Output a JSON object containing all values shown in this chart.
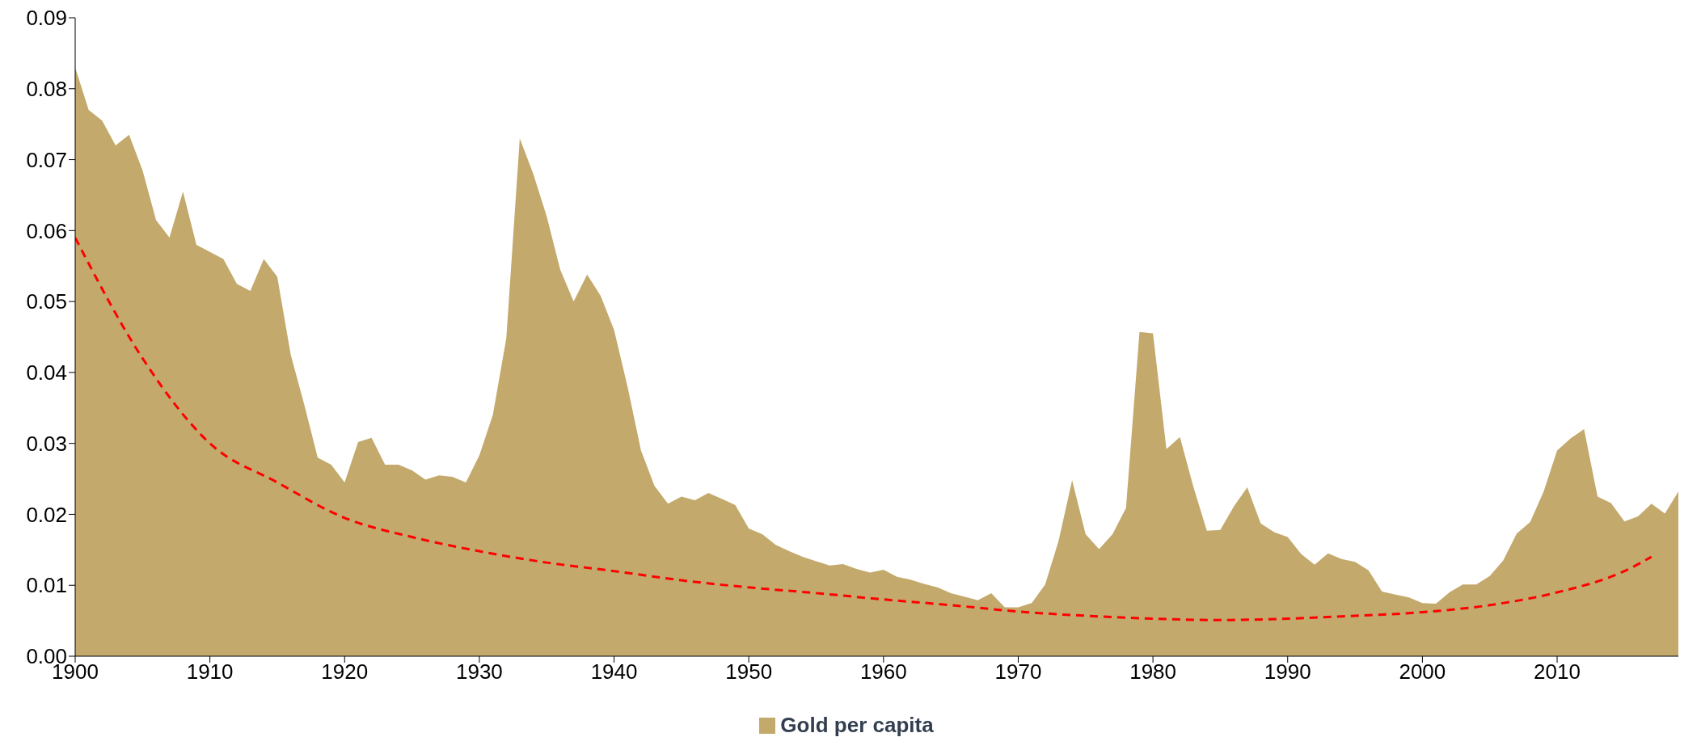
{
  "chart_data": {
    "type": "area",
    "x": [
      1900,
      1901,
      1902,
      1903,
      1904,
      1905,
      1906,
      1907,
      1908,
      1909,
      1910,
      1911,
      1912,
      1913,
      1914,
      1915,
      1916,
      1917,
      1918,
      1919,
      1920,
      1921,
      1922,
      1923,
      1924,
      1925,
      1926,
      1927,
      1928,
      1929,
      1930,
      1931,
      1932,
      1933,
      1934,
      1935,
      1936,
      1937,
      1938,
      1939,
      1940,
      1941,
      1942,
      1943,
      1944,
      1945,
      1946,
      1947,
      1948,
      1949,
      1950,
      1951,
      1952,
      1953,
      1954,
      1955,
      1956,
      1957,
      1958,
      1959,
      1960,
      1961,
      1962,
      1963,
      1964,
      1965,
      1966,
      1967,
      1968,
      1969,
      1970,
      1971,
      1972,
      1973,
      1974,
      1975,
      1976,
      1977,
      1978,
      1979,
      1980,
      1981,
      1982,
      1983,
      1984,
      1985,
      1986,
      1987,
      1988,
      1989,
      1990,
      1991,
      1992,
      1993,
      1994,
      1995,
      1996,
      1997,
      1998,
      1999,
      2000,
      2001,
      2002,
      2003,
      2004,
      2005,
      2006,
      2007,
      2008,
      2009,
      2010,
      2011,
      2012,
      2013,
      2014,
      2015,
      2016,
      2017,
      2018,
      2019
    ],
    "series": [
      {
        "name": "Gold per capita",
        "color": "#c3a96c",
        "values": [
          0.083,
          0.077,
          0.0755,
          0.072,
          0.0735,
          0.0685,
          0.0615,
          0.059,
          0.0655,
          0.058,
          0.057,
          0.056,
          0.0525,
          0.0515,
          0.056,
          0.0535,
          0.0425,
          0.0355,
          0.028,
          0.027,
          0.0245,
          0.0302,
          0.0308,
          0.027,
          0.027,
          0.0262,
          0.0249,
          0.0255,
          0.0253,
          0.0245,
          0.0283,
          0.034,
          0.0448,
          0.073,
          0.068,
          0.062,
          0.0545,
          0.05,
          0.0538,
          0.0508,
          0.046,
          0.038,
          0.029,
          0.024,
          0.0215,
          0.0225,
          0.022,
          0.023,
          0.0222,
          0.0213,
          0.018,
          0.0172,
          0.0157,
          0.0148,
          0.014,
          0.0134,
          0.0128,
          0.013,
          0.0123,
          0.0118,
          0.0122,
          0.0112,
          0.0108,
          0.0102,
          0.0097,
          0.0089,
          0.0084,
          0.0079,
          0.0089,
          0.0069,
          0.0069,
          0.0075,
          0.0101,
          0.0163,
          0.0248,
          0.0172,
          0.0151,
          0.0172,
          0.0209,
          0.0457,
          0.0455,
          0.0292,
          0.0309,
          0.0239,
          0.0177,
          0.0178,
          0.0211,
          0.0238,
          0.0187,
          0.0175,
          0.0168,
          0.0144,
          0.0129,
          0.0145,
          0.0137,
          0.0133,
          0.0121,
          0.0091,
          0.0087,
          0.0083,
          0.0075,
          0.0074,
          0.009,
          0.0101,
          0.0101,
          0.0113,
          0.0135,
          0.0173,
          0.0189,
          0.0232,
          0.029,
          0.0307,
          0.032,
          0.0225,
          0.0216,
          0.019,
          0.0197,
          0.0215,
          0.0201,
          0.0232
        ]
      },
      {
        "type": "line",
        "color": "#ff0000",
        "line_style": "dashed",
        "x": [
          1900,
          1905,
          1910,
          1915,
          1920,
          1925,
          1930,
          1935,
          1940,
          1945,
          1950,
          1955,
          1960,
          1965,
          1970,
          1975,
          1980,
          1985,
          1990,
          1995,
          2000,
          2005,
          2010,
          2015,
          2017
        ],
        "values": [
          0.059,
          0.042,
          0.03,
          0.0245,
          0.0195,
          0.0168,
          0.0148,
          0.0132,
          0.012,
          0.0107,
          0.0097,
          0.0089,
          0.008,
          0.0072,
          0.0063,
          0.0057,
          0.0053,
          0.0051,
          0.0053,
          0.0057,
          0.0062,
          0.0072,
          0.009,
          0.012,
          0.014
        ]
      }
    ],
    "xlim": [
      1900,
      2019
    ],
    "xticks": [
      1900,
      1910,
      1920,
      1930,
      1940,
      1950,
      1960,
      1970,
      1980,
      1990,
      2000,
      2010
    ],
    "ylim": [
      0,
      0.09
    ],
    "yticks": [
      {
        "value": 0,
        "label": "0.00"
      },
      {
        "value": 0.01,
        "label": "0.01"
      },
      {
        "value": 0.02,
        "label": "0.02"
      },
      {
        "value": 0.03,
        "label": "0.03"
      },
      {
        "value": 0.04,
        "label": "0.04"
      },
      {
        "value": 0.05,
        "label": "0.05"
      },
      {
        "value": 0.06,
        "label": "0.06"
      },
      {
        "value": 0.07,
        "label": "0.07"
      },
      {
        "value": 0.08,
        "label": "0.08"
      },
      {
        "value": 0.09,
        "label": "0.09"
      }
    ],
    "legend": "bottom"
  }
}
